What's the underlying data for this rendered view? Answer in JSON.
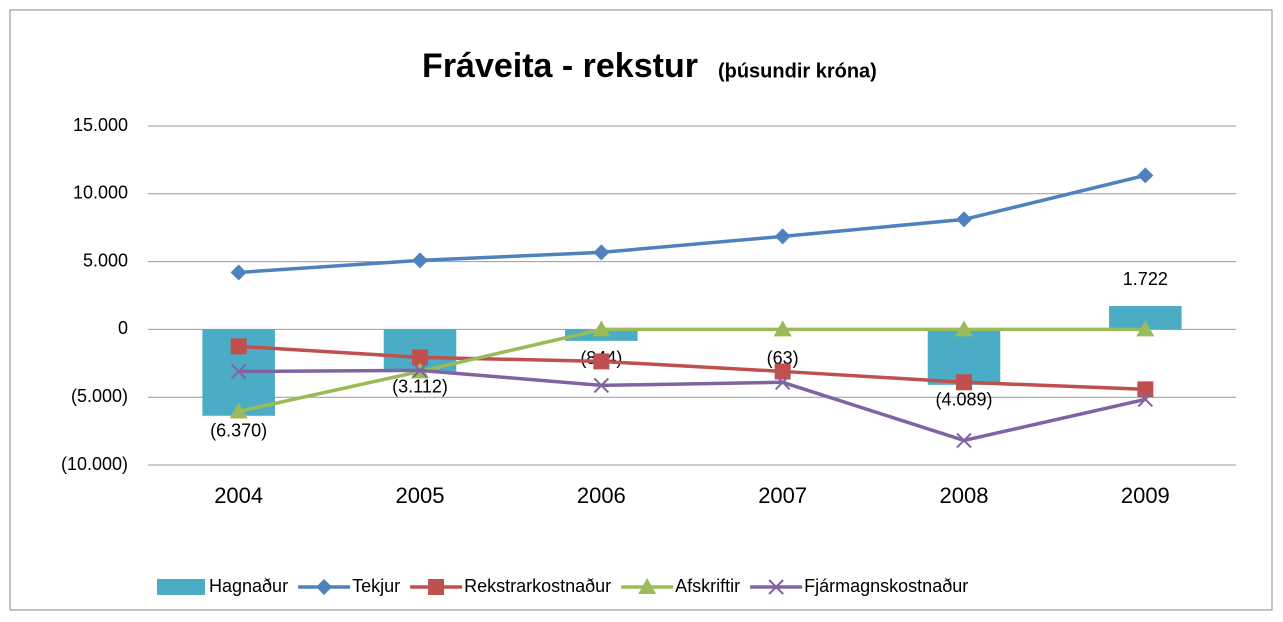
{
  "chart_data": {
    "type": "bar-line",
    "title": "Fráveita - rekstur",
    "subtitle": "(þúsundir króna)",
    "categories": [
      "2004",
      "2005",
      "2006",
      "2007",
      "2008",
      "2009"
    ],
    "ylim": [
      -10000,
      15000
    ],
    "yticks": [
      {
        "value": -10000,
        "label": "(10.000)"
      },
      {
        "value": -5000,
        "label": "(5.000)"
      },
      0,
      {
        "value": 5000,
        "label": "5.000"
      },
      {
        "value": 10000,
        "label": "10.000"
      },
      {
        "value": 15000,
        "label": "15.000"
      }
    ],
    "grid": true,
    "legend": "bottom",
    "series": [
      {
        "name": "Hagnaður",
        "type": "bar",
        "color": "#4bacc6",
        "values": [
          -6370,
          -3112,
          -844,
          -63,
          -4089,
          1722
        ],
        "value_labels": [
          "(6.370)",
          "(3.112)",
          "(844)",
          "(63)",
          "(4.089)",
          "1.722"
        ]
      },
      {
        "name": "Tekjur",
        "type": "line",
        "marker": "diamond",
        "color": "#4f81bd",
        "values": [
          4200,
          5090,
          5680,
          6860,
          8110,
          11360
        ]
      },
      {
        "name": "Rekstrarkostnaður",
        "type": "line",
        "marker": "square",
        "color": "#c0504d",
        "values": [
          -1250,
          -2060,
          -2360,
          -3100,
          -3900,
          -4420
        ]
      },
      {
        "name": "Afskriftir",
        "type": "line",
        "marker": "triangle",
        "color": "#9bbb59",
        "values": [
          -6050,
          -3100,
          0,
          0,
          0,
          0
        ]
      },
      {
        "name": "Fjármagnskostnaður",
        "type": "line",
        "marker": "x",
        "color": "#8064a2",
        "values": [
          -3100,
          -3020,
          -4130,
          -3900,
          -8190,
          -5160
        ]
      }
    ]
  }
}
